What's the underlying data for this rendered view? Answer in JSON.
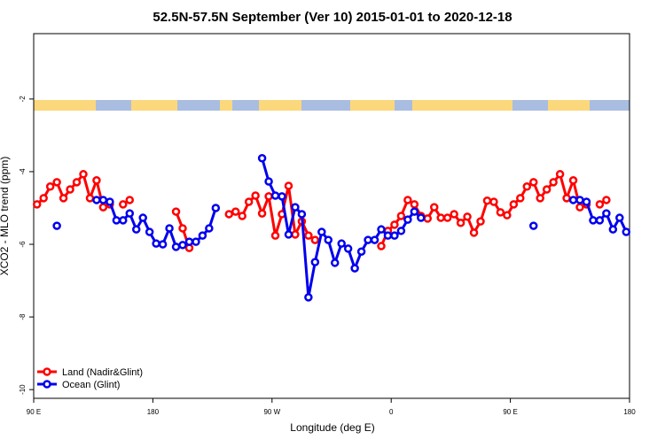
{
  "chart_data": {
    "type": "line",
    "title": "52.5N-57.5N September (Ver 10)   2015-01-01 to 2020-12-18",
    "x_label": "Longitude (deg E)",
    "y_label": "XCO2 - MLO trend (ppm)",
    "x": [
      92.5,
      97.5,
      102.5,
      107.5,
      112.5,
      117.5,
      122.5,
      127.5,
      132.5,
      137.5,
      142.5,
      147.5,
      152.5,
      157.5,
      162.5,
      167.5,
      172.5,
      177.5,
      182.5,
      187.5,
      192.5,
      197.5,
      202.5,
      207.5,
      212.5,
      217.5,
      222.5,
      227.5,
      232.5,
      237.5,
      242.5,
      247.5,
      252.5,
      257.5,
      262.5,
      267.5,
      272.5,
      277.5,
      282.5,
      287.5,
      292.5,
      297.5,
      302.5,
      307.5,
      312.5,
      317.5,
      322.5,
      327.5,
      332.5,
      337.5,
      342.5,
      347.5,
      352.5,
      357.5,
      362.5,
      367.5,
      372.5,
      377.5,
      382.5,
      387.5,
      392.5,
      397.5,
      402.5,
      407.5,
      412.5,
      417.5,
      422.5,
      427.5,
      432.5,
      437.5,
      442.5,
      447.5,
      452.5,
      457.5,
      462.5,
      467.5,
      472.5,
      477.5,
      482.5,
      487.5,
      492.5,
      497.5,
      502.5,
      507.5,
      512.5,
      517.5,
      522.5,
      527.5,
      532.5,
      537.5
    ],
    "series": [
      {
        "name": "Land (Nadir&Glint)",
        "color": "#ff0000",
        "values": [
          -4.9,
          -4.73,
          -4.41,
          -4.29,
          -4.73,
          -4.49,
          -4.29,
          -4.07,
          -4.73,
          -4.24,
          -4.98,
          -4.9,
          null,
          -4.9,
          -4.78,
          null,
          null,
          null,
          null,
          null,
          null,
          -5.1,
          -5.56,
          -6.1,
          null,
          null,
          null,
          null,
          null,
          -5.17,
          -5.1,
          -5.22,
          -4.83,
          -4.66,
          -5.15,
          -4.68,
          -5.76,
          -5.17,
          -4.39,
          -5.73,
          -5.37,
          -5.76,
          -5.88,
          null,
          null,
          null,
          null,
          null,
          null,
          null,
          null,
          null,
          -6.05,
          -5.63,
          -5.46,
          -5.22,
          -4.78,
          -4.9,
          -5.22,
          -5.29,
          -4.98,
          -5.27,
          -5.27,
          -5.17,
          -5.41,
          -5.24,
          -5.68,
          -5.37,
          -4.8,
          -4.83,
          -5.12,
          -5.2,
          -4.9,
          -4.73,
          -4.41,
          -4.29,
          -4.73,
          -4.49,
          -4.29,
          -4.07,
          -4.73,
          -4.24,
          -4.98,
          -4.9,
          null,
          -4.9,
          -4.78,
          null,
          null,
          null
        ]
      },
      {
        "name": "Ocean (Glint)",
        "color": "#0000ee",
        "values": [
          null,
          null,
          null,
          -5.49,
          null,
          null,
          null,
          null,
          null,
          -4.78,
          -4.78,
          -4.83,
          -5.34,
          -5.34,
          -5.15,
          -5.59,
          -5.27,
          -5.66,
          -5.98,
          -6.0,
          -5.56,
          -6.07,
          -6.02,
          -5.93,
          -5.93,
          -5.76,
          -5.56,
          -5.0,
          null,
          null,
          null,
          null,
          null,
          null,
          -3.63,
          -4.27,
          -4.66,
          -4.68,
          -5.73,
          -4.98,
          -5.17,
          -7.46,
          -6.49,
          -5.66,
          -5.88,
          -6.51,
          -5.98,
          -6.12,
          -6.66,
          -6.2,
          -5.88,
          -5.88,
          -5.59,
          -5.76,
          -5.76,
          -5.63,
          -5.32,
          -5.1,
          -5.27,
          null,
          null,
          null,
          null,
          null,
          null,
          null,
          null,
          null,
          null,
          null,
          null,
          null,
          null,
          null,
          null,
          -5.49,
          null,
          null,
          null,
          null,
          null,
          -4.78,
          -4.78,
          -4.83,
          -5.34,
          -5.34,
          -5.15,
          -5.59,
          -5.27,
          -5.66
        ]
      }
    ],
    "xlim": [
      90,
      540
    ],
    "xticks": [
      {
        "value": 90,
        "label": "90 E"
      },
      180,
      {
        "value": 270,
        "label": "90 W"
      },
      {
        "value": 360,
        "label": "0"
      },
      {
        "value": 450,
        "label": "90 E"
      },
      {
        "value": 540,
        "label": "180"
      }
    ],
    "ylim": [
      -10.24,
      -0.2
    ],
    "yticks": [
      -2,
      -4,
      -6,
      -8,
      -10
    ],
    "legend": "bottom-left"
  }
}
